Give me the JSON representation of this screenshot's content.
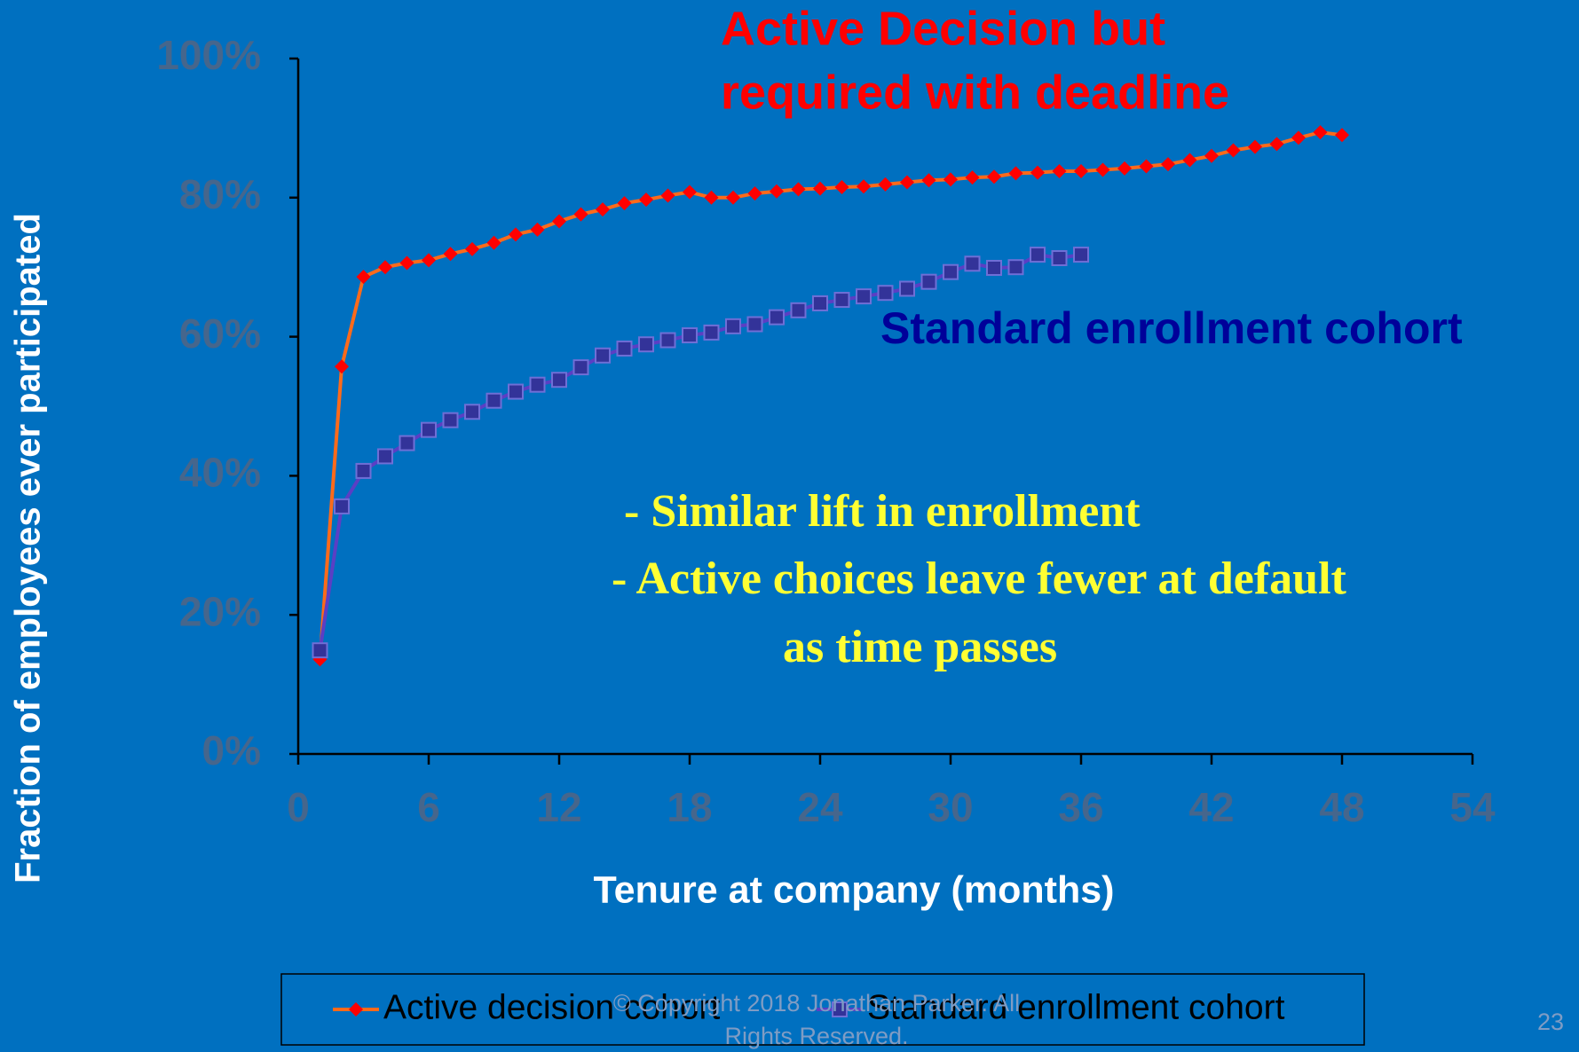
{
  "chart_data": {
    "type": "line",
    "title_lines": [
      "Active Decision but",
      "required  with deadline"
    ],
    "annotations": [
      "Standard enrollment cohort",
      "- Similar lift in enrollment",
      "-  Active choices leave fewer at default",
      "as time passes"
    ],
    "xlabel": "Tenure at company (months)",
    "ylabel": "Fraction of employees ever participated",
    "xlim": [
      0,
      54
    ],
    "xticks": [
      0,
      6,
      12,
      18,
      24,
      30,
      36,
      42,
      48,
      54
    ],
    "ylim": [
      0,
      100
    ],
    "yticks": [
      {
        "value": 0,
        "label": "0%"
      },
      {
        "value": 20,
        "label": "20%"
      },
      {
        "value": 40,
        "label": "40%"
      },
      {
        "value": 60,
        "label": "60%"
      },
      {
        "value": 80,
        "label": "80%"
      },
      {
        "value": 100,
        "label": "100%"
      }
    ],
    "legend": "bottom",
    "series": [
      {
        "name": "Active decision cohort",
        "color": "#ff0000",
        "line_color": "#ff6a1a",
        "marker": "diamond",
        "x": [
          1,
          2,
          3,
          4,
          5,
          6,
          7,
          8,
          9,
          10,
          11,
          12,
          13,
          14,
          15,
          16,
          17,
          18,
          19,
          20,
          21,
          22,
          23,
          24,
          25,
          26,
          27,
          28,
          29,
          30,
          31,
          32,
          33,
          34,
          35,
          36,
          37,
          38,
          39,
          40,
          41,
          42,
          43,
          44,
          45,
          46,
          47,
          48
        ],
        "values": [
          13.6,
          55.7,
          68.6,
          70,
          70.6,
          71,
          71.9,
          72.6,
          73.5,
          74.7,
          75.4,
          76.6,
          77.6,
          78.3,
          79.2,
          79.7,
          80.3,
          80.8,
          80,
          80,
          80.6,
          80.9,
          81.2,
          81.3,
          81.5,
          81.6,
          81.9,
          82.2,
          82.5,
          82.6,
          82.9,
          83,
          83.5,
          83.6,
          83.8,
          83.8,
          84,
          84.2,
          84.5,
          84.8,
          85.4,
          86,
          86.8,
          87.3,
          87.7,
          88.6,
          89.4,
          89
        ]
      },
      {
        "name": "Standard enrollment cohort",
        "color": "#333399",
        "line_color": "#5b3fc4",
        "marker": "square",
        "x": [
          1,
          2,
          3,
          4,
          5,
          6,
          7,
          8,
          9,
          10,
          11,
          12,
          13,
          14,
          15,
          16,
          17,
          18,
          19,
          20,
          21,
          22,
          23,
          24,
          25,
          26,
          27,
          28,
          29,
          30,
          31,
          32,
          33,
          34,
          35,
          36
        ],
        "values": [
          14.9,
          35.6,
          40.7,
          42.8,
          44.7,
          46.6,
          48,
          49.2,
          50.8,
          52.1,
          53.1,
          53.8,
          55.6,
          57.3,
          58.3,
          58.9,
          59.5,
          60.2,
          60.6,
          61.5,
          61.8,
          62.8,
          63.8,
          64.8,
          65.3,
          65.8,
          66.3,
          66.9,
          67.9,
          69.3,
          70.5,
          69.9,
          70,
          71.8,
          71.3,
          71.8
        ]
      }
    ]
  },
  "footer": {
    "copyright_lines": [
      "© Copyright 2018 Jonathan Parker. All",
      "Rights Reserved."
    ],
    "page_number": "23"
  }
}
